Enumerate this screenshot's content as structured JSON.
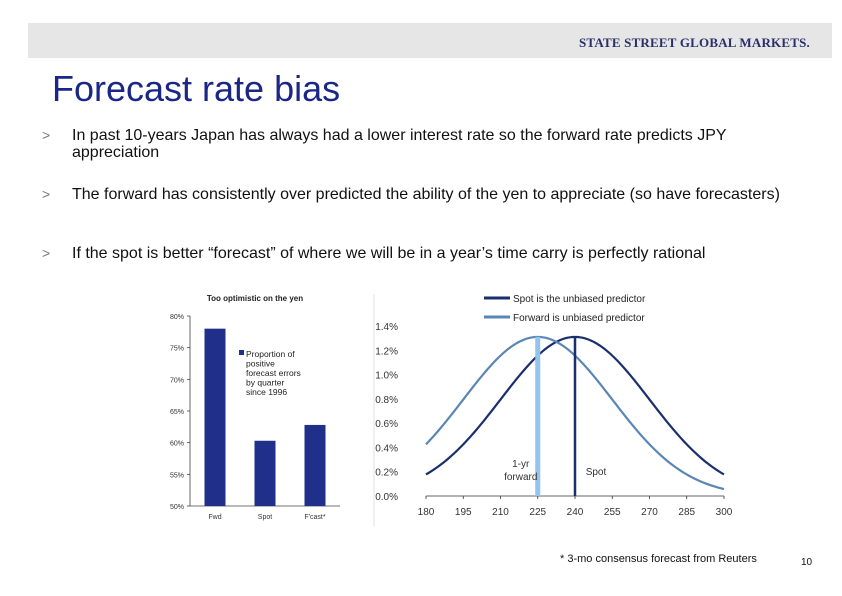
{
  "header": {
    "logo_text": "STATE STREET GLOBAL MARKETS."
  },
  "title": "Forecast rate bias",
  "bullets": [
    {
      "marker": ">",
      "text": "In past 10-years Japan has always had a lower interest rate so the forward rate predicts JPY appreciation"
    },
    {
      "marker": ">",
      "text": "The forward has consistently over predicted the ability of the yen to appreciate (so have forecasters)"
    },
    {
      "marker": ">",
      "text": "If the spot is better “forecast” of where we will be in a year’s time carry is perfectly rational"
    }
  ],
  "footnote": "* 3-mo consensus forecast from Reuters",
  "page_number": "10",
  "colors": {
    "title": "#1a2787",
    "bar": "#1f2f8a",
    "spot_line": "#1a2f6e",
    "forward_line": "#5a86b5",
    "forward_marker": "#93c4ee",
    "header_band": "#e6e6e6"
  },
  "chart_data": [
    {
      "type": "bar",
      "title": "Too optimistic on the yen",
      "categories": [
        "Fwd",
        "Spot",
        "F'cast*"
      ],
      "series": [
        {
          "name": "Proportion of positive forecast errors by quarter since 1996",
          "values": [
            78,
            60.3,
            62.8
          ]
        }
      ],
      "ylim": [
        50,
        80
      ],
      "yticks": [
        "50%",
        "55%",
        "60%",
        "65%",
        "70%",
        "75%",
        "80%"
      ],
      "legend_lines": [
        "Proportion of",
        "positive",
        "forecast errors",
        "by quarter",
        "since 1996"
      ],
      "legend_position": "right",
      "grid": false
    },
    {
      "type": "line",
      "x": [
        180,
        300
      ],
      "xticks": [
        180,
        195,
        210,
        225,
        240,
        255,
        270,
        285,
        300
      ],
      "yticks": [
        "0.0%",
        "0.2%",
        "0.4%",
        "0.6%",
        "0.8%",
        "1.0%",
        "1.2%",
        "1.4%"
      ],
      "ylim": [
        0,
        1.4
      ],
      "series": [
        {
          "name": "Spot is the unbiased predictor",
          "mean": 240,
          "sd": 30,
          "peak": 1.31
        },
        {
          "name": "Forward is unbiased predictor",
          "mean": 225,
          "sd": 30,
          "peak": 1.31
        }
      ],
      "markers": [
        {
          "label": "1-yr forward",
          "label_lines": [
            "1-yr",
            "forward"
          ],
          "x": 225
        },
        {
          "label": "Spot",
          "x": 240
        }
      ],
      "legend_position": "top",
      "grid": false
    }
  ]
}
